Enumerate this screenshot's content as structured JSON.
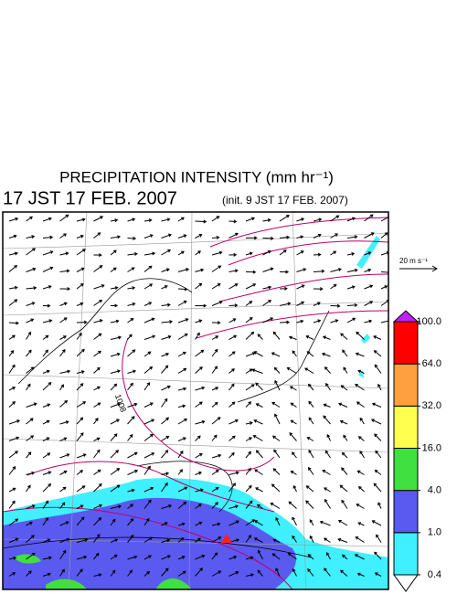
{
  "title": "PRECIPITATION INTENSITY (mm hr⁻¹)",
  "valid_time": "17 JST 17 FEB. 2007",
  "init_time": "(init. 9 JST 17 FEB. 2007)",
  "vector_reference": "20 m s⁻¹",
  "contour_label": "1008",
  "colorbar": {
    "levels": [
      {
        "value": 0.4,
        "label": "0.4"
      },
      {
        "value": 1,
        "label": "1.0"
      },
      {
        "value": 4,
        "label": "4.0"
      },
      {
        "value": 16,
        "label": "16.0"
      },
      {
        "value": 32,
        "label": "32.0"
      },
      {
        "value": 64,
        "label": "64.0"
      },
      {
        "value": 100,
        "label": "100.0"
      }
    ],
    "colors": [
      "#ffffff",
      "#40f0ff",
      "#5a5af0",
      "#40e040",
      "#ffff50",
      "#ffa040",
      "#ff0000",
      "#c020ff"
    ]
  }
}
